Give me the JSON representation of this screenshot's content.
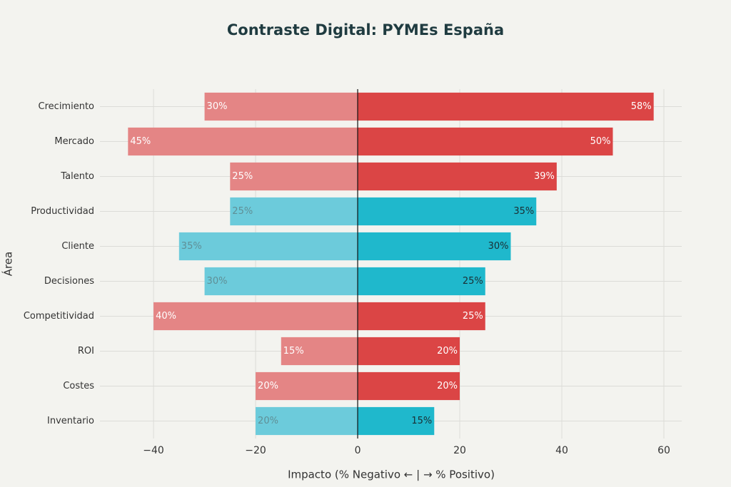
{
  "chart_data": {
    "type": "diverging_bar",
    "title": "Contraste Digital: PYMEs España",
    "x_label": "Impacto (% Negativo ← | → % Positivo)",
    "y_label": "Área",
    "categories": [
      "Crecimiento",
      "Mercado",
      "Talento",
      "Productividad",
      "Cliente",
      "Decisiones",
      "Competitividad",
      "ROI",
      "Costes",
      "Inventario"
    ],
    "series": [
      {
        "values": [
          -30,
          -45,
          -25,
          -25,
          -35,
          -30,
          -40,
          -15,
          -20,
          -20
        ],
        "value_labels": [
          "30%",
          "45%",
          "25%",
          "25%",
          "35%",
          "30%",
          "40%",
          "15%",
          "20%",
          "20%"
        ],
        "colors": [
          "#e48585",
          "#e48585",
          "#e48585",
          "#6ccbdb",
          "#6ccbdb",
          "#6ccbdb",
          "#e48585",
          "#e48585",
          "#e48585",
          "#6ccbdb"
        ]
      },
      {
        "values": [
          58,
          50,
          39,
          35,
          30,
          25,
          25,
          20,
          20,
          15
        ],
        "value_labels": [
          "58%",
          "50%",
          "39%",
          "35%",
          "30%",
          "25%",
          "25%",
          "20%",
          "20%",
          "15%"
        ],
        "colors": [
          "#db4545",
          "#db4545",
          "#db4545",
          "#1fb8cc",
          "#1fb8cc",
          "#1fb8cc",
          "#db4545",
          "#db4545",
          "#db4545",
          "#1fb8cc"
        ]
      }
    ],
    "xlim": [
      -50.5,
      63.5
    ],
    "xticks": [
      {
        "value": -40,
        "label": "−40"
      },
      {
        "value": -20,
        "label": "−20"
      },
      0,
      20,
      40,
      60
    ],
    "grid": true
  }
}
